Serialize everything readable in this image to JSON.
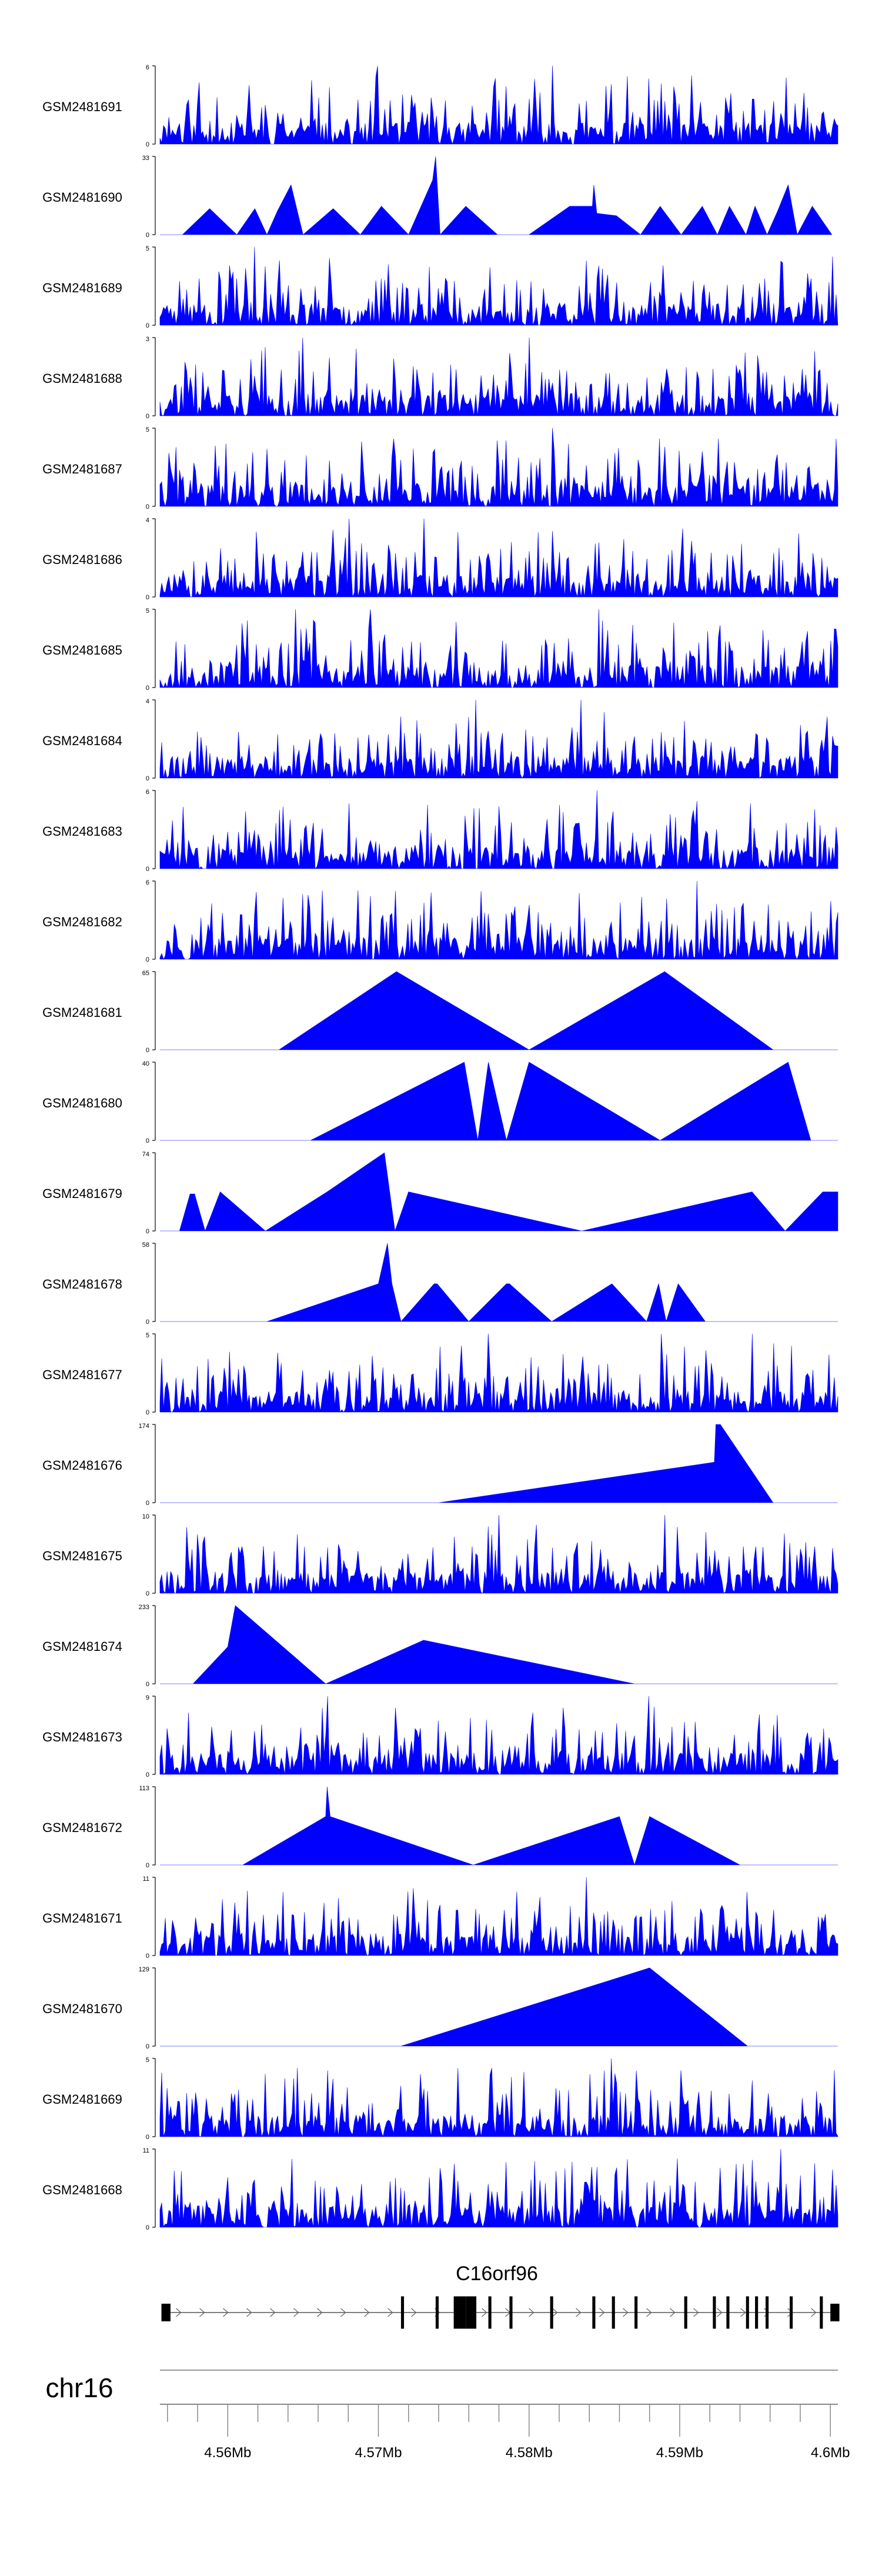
{
  "chart_data": {
    "type": "area",
    "title": "",
    "xlabel": "",
    "ylabel": "",
    "color": "#0000ff",
    "genome": {
      "chromosome": "chr16",
      "xlim": [
        4.5555,
        4.6005
      ],
      "tick_labels": [
        "4.56Mb",
        "4.57Mb",
        "4.58Mb",
        "4.59Mb",
        "4.6Mb"
      ],
      "tick_values": [
        4.56,
        4.57,
        4.58,
        4.59,
        4.6
      ],
      "gene": {
        "name": "C16orf96",
        "start": 4.5556,
        "end": 4.6006,
        "exons": [
          [
            4.5556,
            4.5562
          ],
          [
            4.5715,
            4.5717
          ],
          [
            4.5738,
            4.574
          ],
          [
            4.575,
            4.5758
          ],
          [
            4.5758,
            4.5765
          ],
          [
            4.5773,
            4.5775
          ],
          [
            4.5787,
            4.5789
          ],
          [
            4.5814,
            4.5816
          ],
          [
            4.5842,
            4.5844
          ],
          [
            4.5855,
            4.5857
          ],
          [
            4.587,
            4.5872
          ],
          [
            4.5903,
            4.5905
          ],
          [
            4.5922,
            4.5924
          ],
          [
            4.5931,
            4.5933
          ],
          [
            4.5944,
            4.5946
          ],
          [
            4.595,
            4.5952
          ],
          [
            4.5957,
            4.5959
          ],
          [
            4.5973,
            4.5975
          ],
          [
            4.5993,
            4.5995
          ],
          [
            4.6,
            4.6006
          ]
        ]
      }
    },
    "series": [
      {
        "name": "GSM2481691",
        "ymax": "6",
        "style": "dense",
        "seed": 11,
        "values": [
          [
            4.57,
            6
          ],
          [
            4.5815,
            6
          ]
        ]
      },
      {
        "name": "GSM2481690",
        "ymax": "33",
        "style": "sparse",
        "values": [
          [
            4.5555,
            0
          ],
          [
            4.557,
            0
          ],
          [
            4.5588,
            11
          ],
          [
            4.5606,
            0
          ],
          [
            4.5618,
            11
          ],
          [
            4.5626,
            0
          ],
          [
            4.5633,
            10
          ],
          [
            4.5642,
            21
          ],
          [
            4.565,
            0
          ],
          [
            4.567,
            11
          ],
          [
            4.5688,
            0
          ],
          [
            4.5702,
            12
          ],
          [
            4.572,
            0
          ],
          [
            4.5736,
            23
          ],
          [
            4.5738,
            33
          ],
          [
            4.5741,
            0
          ],
          [
            4.5758,
            12
          ],
          [
            4.5779,
            0
          ],
          [
            4.58,
            0
          ],
          [
            4.5827,
            12
          ],
          [
            4.5842,
            12
          ],
          [
            4.5843,
            21
          ],
          [
            4.5845,
            9
          ],
          [
            4.5858,
            8
          ],
          [
            4.5874,
            0
          ],
          [
            4.5887,
            12
          ],
          [
            4.5901,
            0
          ],
          [
            4.5915,
            12
          ],
          [
            4.5925,
            0
          ],
          [
            4.5933,
            12
          ],
          [
            4.5944,
            0
          ],
          [
            4.595,
            12
          ],
          [
            4.5958,
            0
          ],
          [
            4.5965,
            10
          ],
          [
            4.5972,
            21
          ],
          [
            4.5978,
            0
          ],
          [
            4.5988,
            12
          ],
          [
            4.6001,
            0
          ]
        ]
      },
      {
        "name": "GSM2481689",
        "ymax": "5",
        "style": "dense",
        "seed": 23,
        "values": [
          [
            4.5618,
            5
          ],
          [
            4.5845,
            3
          ]
        ]
      },
      {
        "name": "GSM2481688",
        "ymax": "3",
        "style": "dense",
        "seed": 37,
        "values": [
          [
            4.58,
            3
          ],
          [
            4.565,
            3
          ]
        ]
      },
      {
        "name": "GSM2481687",
        "ymax": "5",
        "style": "dense",
        "seed": 41,
        "values": [
          [
            4.5815,
            5
          ],
          [
            4.5826,
            4
          ]
        ]
      },
      {
        "name": "GSM2481686",
        "ymax": "4",
        "style": "dense",
        "seed": 53,
        "values": [
          [
            4.568,
            4
          ],
          [
            4.573,
            4
          ]
        ]
      },
      {
        "name": "GSM2481685",
        "ymax": "5",
        "style": "dense",
        "seed": 67,
        "values": [
          [
            4.5645,
            5
          ],
          [
            4.5695,
            5
          ],
          [
            4.5846,
            5
          ]
        ]
      },
      {
        "name": "GSM2481684",
        "ymax": "4",
        "style": "dense",
        "seed": 79,
        "values": [
          [
            4.5765,
            4
          ],
          [
            4.5835,
            4
          ]
        ]
      },
      {
        "name": "GSM2481683",
        "ymax": "6",
        "style": "dense",
        "seed": 83,
        "values": [
          [
            4.5845,
            6
          ],
          [
            4.568,
            5
          ]
        ]
      },
      {
        "name": "GSM2481682",
        "ymax": "6",
        "style": "dense",
        "seed": 97,
        "values": [
          [
            4.5912,
            6
          ],
          [
            4.565,
            5
          ]
        ]
      },
      {
        "name": "GSM2481681",
        "ymax": "65",
        "style": "sparse",
        "values": [
          [
            4.5555,
            0
          ],
          [
            4.5634,
            0
          ],
          [
            4.5712,
            65
          ],
          [
            4.58,
            0
          ],
          [
            4.589,
            65
          ],
          [
            4.5962,
            0
          ],
          [
            4.6005,
            0
          ]
        ]
      },
      {
        "name": "GSM2481680",
        "ymax": "40",
        "style": "sparse",
        "values": [
          [
            4.5555,
            0
          ],
          [
            4.5655,
            0
          ],
          [
            4.5757,
            40
          ],
          [
            4.5766,
            0
          ],
          [
            4.5773,
            40
          ],
          [
            4.5785,
            0
          ],
          [
            4.58,
            40
          ],
          [
            4.5887,
            0
          ],
          [
            4.5972,
            40
          ],
          [
            4.5987,
            0
          ],
          [
            4.6005,
            0
          ]
        ]
      },
      {
        "name": "GSM2481679",
        "ymax": "74",
        "style": "sparse",
        "values": [
          [
            4.5555,
            0
          ],
          [
            4.5568,
            0
          ],
          [
            4.5575,
            35
          ],
          [
            4.5578,
            35
          ],
          [
            4.5585,
            0
          ],
          [
            4.5595,
            37
          ],
          [
            4.5625,
            0
          ],
          [
            4.5666,
            37
          ],
          [
            4.5704,
            74
          ],
          [
            4.5711,
            0
          ],
          [
            4.572,
            37
          ],
          [
            4.5835,
            0
          ],
          [
            4.5948,
            37
          ],
          [
            4.597,
            0
          ],
          [
            4.5995,
            37
          ],
          [
            4.6005,
            37
          ]
        ]
      },
      {
        "name": "GSM2481678",
        "ymax": "58",
        "style": "sparse",
        "values": [
          [
            4.5555,
            0
          ],
          [
            4.5626,
            0
          ],
          [
            4.57,
            28
          ],
          [
            4.5706,
            58
          ],
          [
            4.5709,
            28
          ],
          [
            4.5715,
            0
          ],
          [
            4.5737,
            28
          ],
          [
            4.5739,
            28
          ],
          [
            4.576,
            0
          ],
          [
            4.5785,
            28
          ],
          [
            4.5787,
            28
          ],
          [
            4.5815,
            0
          ],
          [
            4.5855,
            28
          ],
          [
            4.5878,
            0
          ],
          [
            4.5886,
            28
          ],
          [
            4.5891,
            0
          ],
          [
            4.5899,
            28
          ],
          [
            4.5917,
            0
          ],
          [
            4.6005,
            0
          ]
        ]
      },
      {
        "name": "GSM2481677",
        "ymax": "5",
        "style": "dense",
        "seed": 101,
        "values": [
          [
            4.5773,
            5
          ],
          [
            4.5888,
            5
          ],
          [
            4.5948,
            5
          ]
        ]
      },
      {
        "name": "GSM2481676",
        "ymax": "174",
        "style": "sparse",
        "values": [
          [
            4.5555,
            0
          ],
          [
            4.574,
            0
          ],
          [
            4.5923,
            90
          ],
          [
            4.5924,
            174
          ],
          [
            4.5927,
            174
          ],
          [
            4.5962,
            0
          ],
          [
            4.6005,
            0
          ]
        ]
      },
      {
        "name": "GSM2481675",
        "ymax": "10",
        "style": "dense",
        "seed": 113,
        "values": [
          [
            4.589,
            10
          ],
          [
            4.578,
            10
          ]
        ]
      },
      {
        "name": "GSM2481674",
        "ymax": "233",
        "style": "sparse",
        "values": [
          [
            4.5555,
            0
          ],
          [
            4.5577,
            0
          ],
          [
            4.56,
            110
          ],
          [
            4.5605,
            233
          ],
          [
            4.5665,
            0
          ],
          [
            4.573,
            130
          ],
          [
            4.587,
            0
          ],
          [
            4.6005,
            0
          ]
        ]
      },
      {
        "name": "GSM2481673",
        "ymax": "9",
        "style": "dense",
        "seed": 127,
        "values": [
          [
            4.5666,
            9
          ],
          [
            4.588,
            9
          ]
        ]
      },
      {
        "name": "GSM2481672",
        "ymax": "113",
        "style": "sparse",
        "values": [
          [
            4.5555,
            0
          ],
          [
            4.561,
            0
          ],
          [
            4.5665,
            70
          ],
          [
            4.5666,
            113
          ],
          [
            4.5668,
            70
          ],
          [
            4.5763,
            0
          ],
          [
            4.586,
            70
          ],
          [
            4.587,
            0
          ],
          [
            4.588,
            70
          ],
          [
            4.594,
            0
          ],
          [
            4.6005,
            0
          ]
        ]
      },
      {
        "name": "GSM2481671",
        "ymax": "11",
        "style": "dense",
        "seed": 131,
        "values": [
          [
            4.5838,
            11
          ],
          [
            4.572,
            9
          ]
        ]
      },
      {
        "name": "GSM2481670",
        "ymax": "129",
        "style": "sparse",
        "values": [
          [
            4.5555,
            0
          ],
          [
            4.5715,
            0
          ],
          [
            4.588,
            129
          ],
          [
            4.5945,
            0
          ],
          [
            4.6005,
            0
          ]
        ]
      },
      {
        "name": "GSM2481669",
        "ymax": "5",
        "style": "dense",
        "seed": 139,
        "values": [
          [
            4.5855,
            5
          ],
          [
            4.584,
            4
          ]
        ]
      },
      {
        "name": "GSM2481668",
        "ymax": "11",
        "style": "dense",
        "seed": 149,
        "values": [
          [
            4.5967,
            11
          ],
          [
            4.599,
            9
          ]
        ]
      }
    ]
  }
}
